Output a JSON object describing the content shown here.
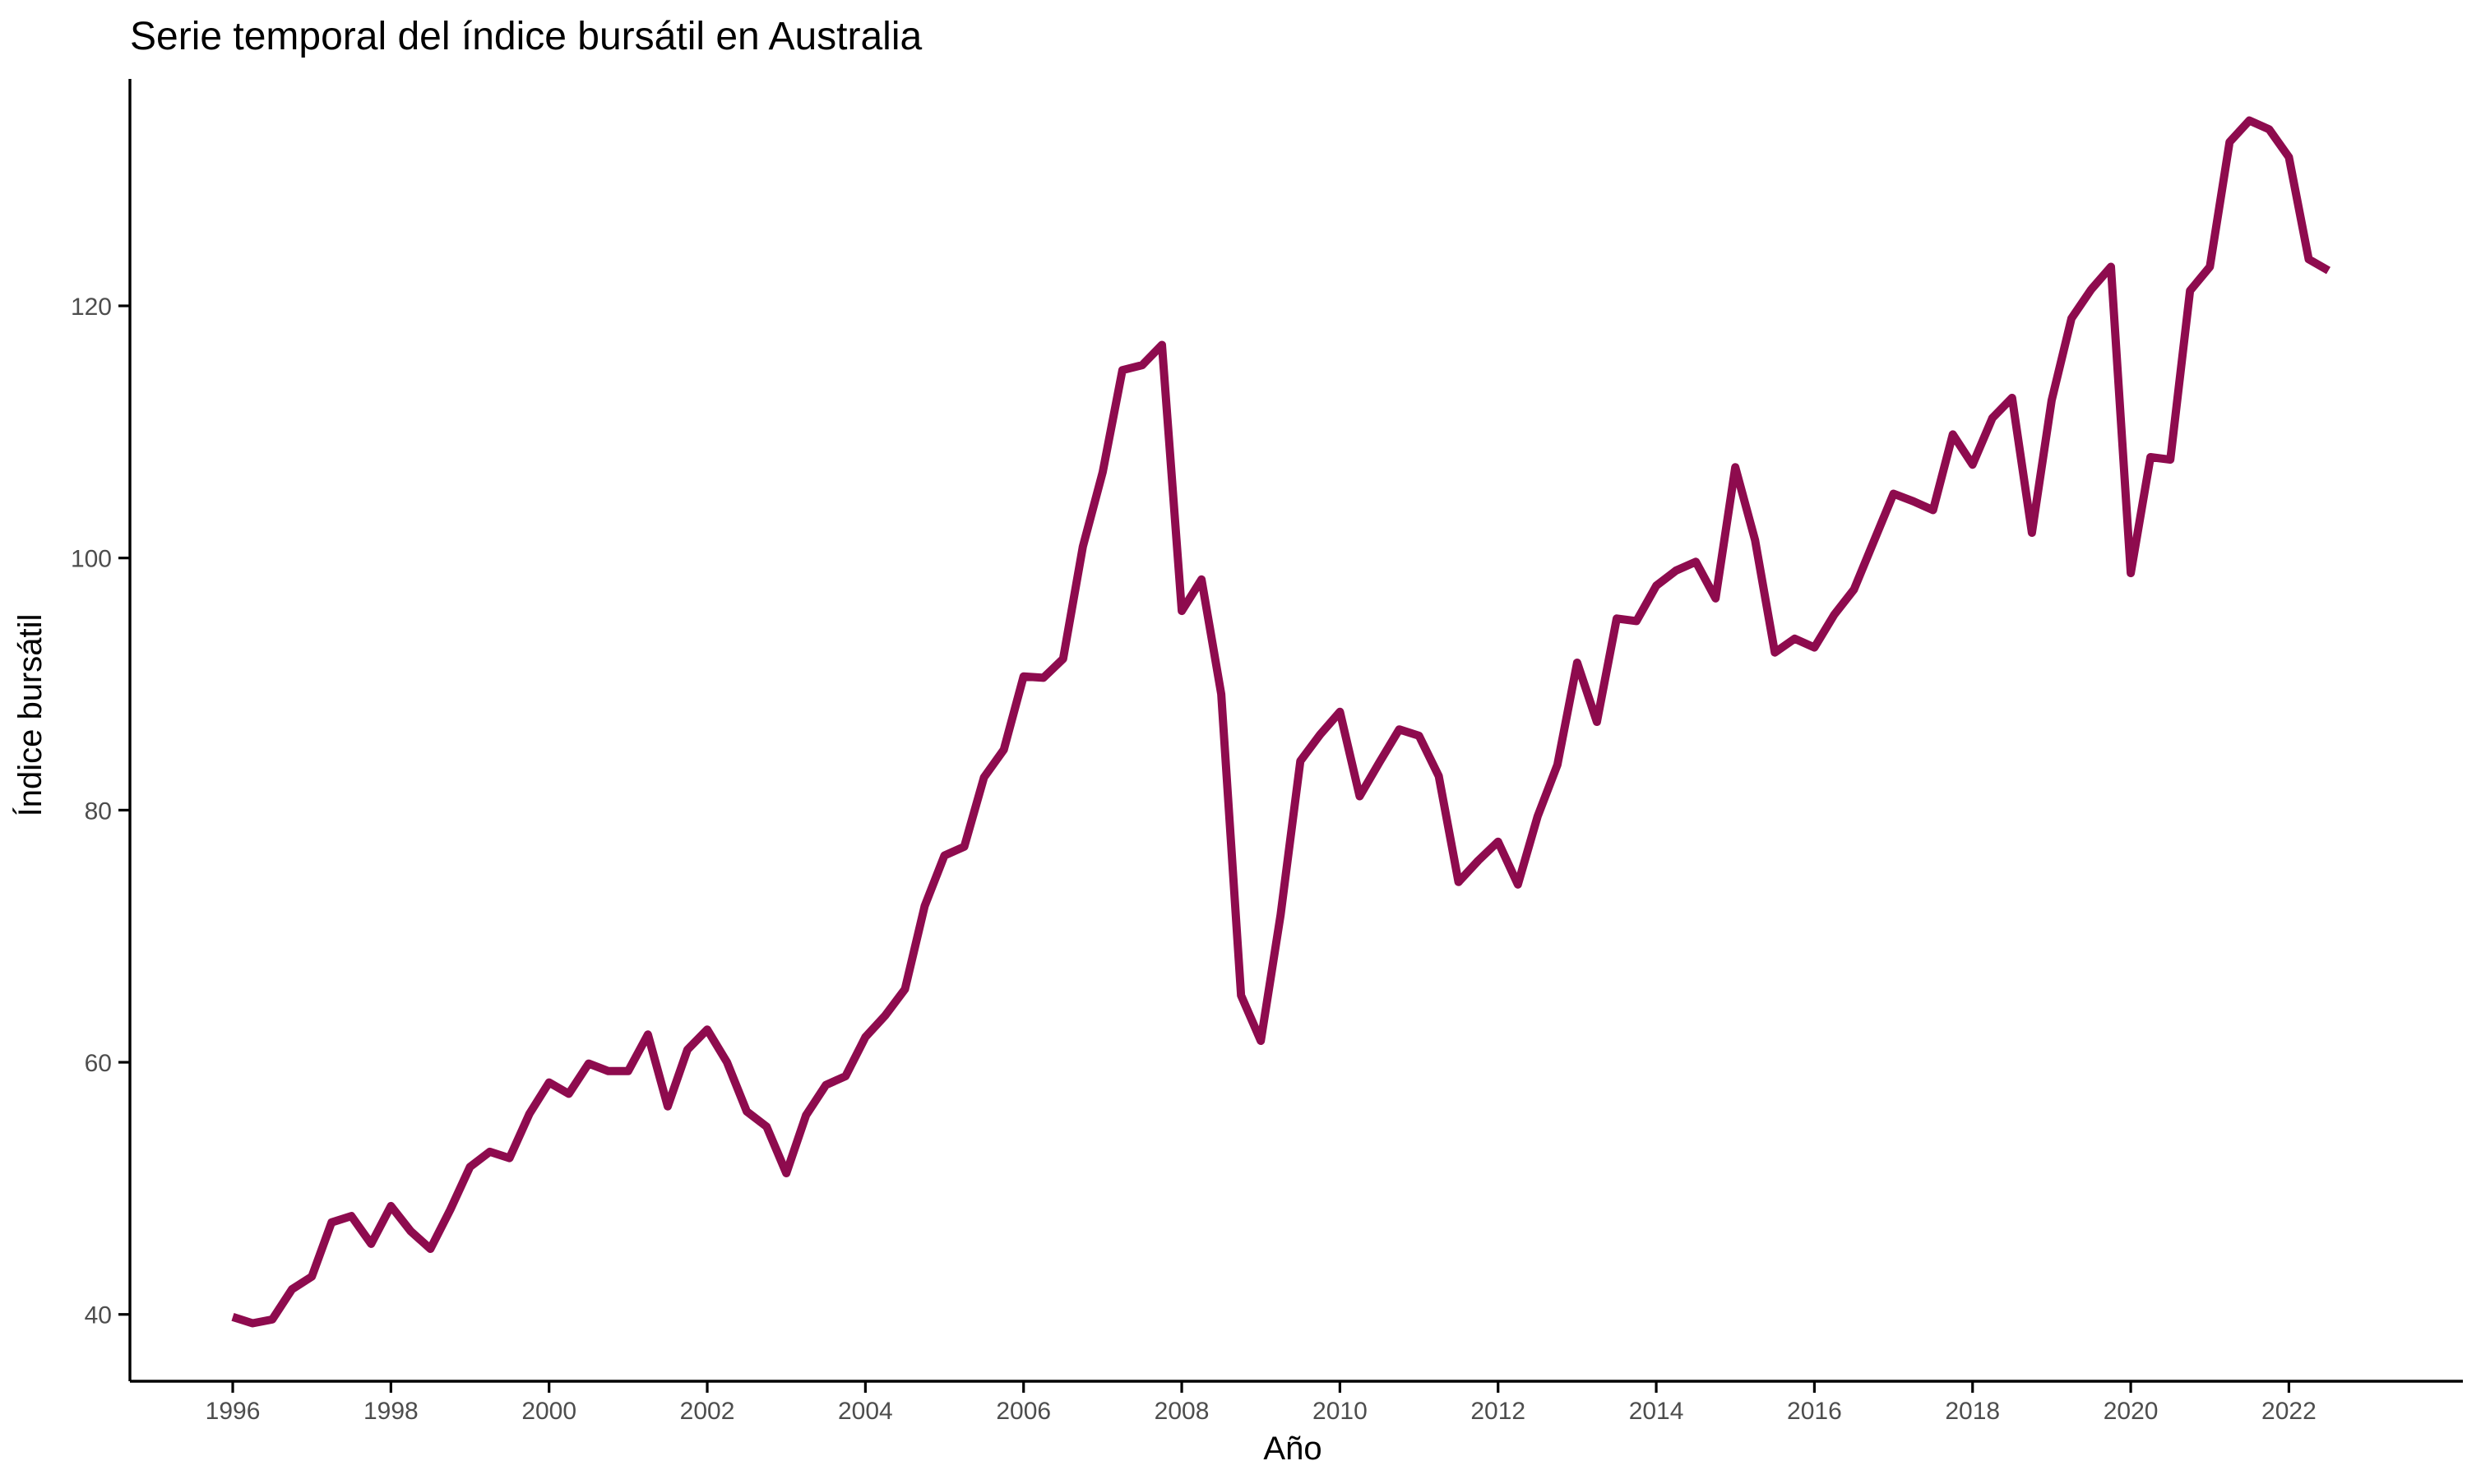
{
  "chart_data": {
    "type": "line",
    "title": "Serie temporal del índice bursátil en Australia",
    "xlabel": "Año",
    "ylabel": "Índice bursátil",
    "xlim": [
      1994.7,
      2024.2
    ],
    "ylim": [
      34.7,
      138.0
    ],
    "x_ticks": [
      1996,
      1998,
      2000,
      2002,
      2004,
      2006,
      2008,
      2010,
      2012,
      2014,
      2016,
      2018,
      2020,
      2022
    ],
    "y_ticks": [
      40,
      60,
      80,
      100,
      120
    ],
    "x_tick_labels": [
      "1996",
      "1998",
      "2000",
      "2002",
      "2004",
      "2006",
      "2008",
      "2010",
      "2012",
      "2014",
      "2016",
      "2018",
      "2020",
      "2022"
    ],
    "y_tick_labels": [
      "40",
      "60",
      "80",
      "100",
      "120"
    ],
    "grid": false,
    "legend": "none",
    "line_color": "#8e0b4e",
    "series": [
      {
        "x": [
          1996.0,
          1996.25,
          1996.5,
          1996.75,
          1997.0,
          1997.25,
          1997.5,
          1997.75,
          1998.0,
          1998.25,
          1998.5,
          1998.75,
          1999.0,
          1999.25,
          1999.5,
          1999.75,
          2000.0,
          2000.25,
          2000.5,
          2000.75,
          2001.0,
          2001.25,
          2001.5,
          2001.75,
          2002.0,
          2002.25,
          2002.5,
          2002.75,
          2003.0,
          2003.25,
          2003.5,
          2003.75,
          2004.0,
          2004.25,
          2004.5,
          2004.75,
          2005.0,
          2005.25,
          2005.5,
          2005.75,
          2006.0,
          2006.25,
          2006.5,
          2006.75,
          2007.0,
          2007.25,
          2007.5,
          2007.75,
          2008.0,
          2008.25,
          2008.5,
          2008.75,
          2009.0,
          2009.25,
          2009.5,
          2009.75,
          2010.0,
          2010.25,
          2010.5,
          2010.75,
          2011.0,
          2011.25,
          2011.5,
          2011.75,
          2012.0,
          2012.25,
          2012.5,
          2012.75,
          2013.0,
          2013.25,
          2013.5,
          2013.75,
          2014.0,
          2014.25,
          2014.5,
          2014.75,
          2015.0,
          2015.25,
          2015.5,
          2015.75,
          2016.0,
          2016.25,
          2016.5,
          2016.75,
          2017.0,
          2017.25,
          2017.5,
          2017.75,
          2018.0,
          2018.25,
          2018.5,
          2018.75,
          2019.0,
          2019.25,
          2019.5,
          2019.75,
          2020.0,
          2020.25,
          2020.5,
          2020.75,
          2021.0,
          2021.25,
          2021.5,
          2021.75,
          2022.0,
          2022.25,
          2022.5
        ],
        "y": [
          39.8,
          39.3,
          39.6,
          42.0,
          43.0,
          47.3,
          47.8,
          45.6,
          48.6,
          46.6,
          45.2,
          48.3,
          51.7,
          52.9,
          52.4,
          55.9,
          58.4,
          57.5,
          59.9,
          59.3,
          59.3,
          62.2,
          56.5,
          61.0,
          62.6,
          60.0,
          56.1,
          54.9,
          51.2,
          55.8,
          58.2,
          58.9,
          62.0,
          63.7,
          65.8,
          72.4,
          76.4,
          77.1,
          82.6,
          84.8,
          90.6,
          90.5,
          92.0,
          100.9,
          106.8,
          114.9,
          115.3,
          116.9,
          95.8,
          98.3,
          89.2,
          65.3,
          61.7,
          71.7,
          83.9,
          86.0,
          87.8,
          81.1,
          83.8,
          86.4,
          85.9,
          82.7,
          74.3,
          76.0,
          77.5,
          74.1,
          79.5,
          83.6,
          91.7,
          87.0,
          95.2,
          95.0,
          97.8,
          99.0,
          99.7,
          96.8,
          107.2,
          101.4,
          92.5,
          93.6,
          92.9,
          95.5,
          97.5,
          101.3,
          105.1,
          104.5,
          103.8,
          109.8,
          107.4,
          111.1,
          112.7,
          102.0,
          112.5,
          119.0,
          121.3,
          123.1,
          98.8,
          108.0,
          107.8,
          121.2,
          123.1,
          133.0,
          134.7,
          134.0,
          131.8,
          123.7,
          122.8
        ]
      }
    ]
  }
}
